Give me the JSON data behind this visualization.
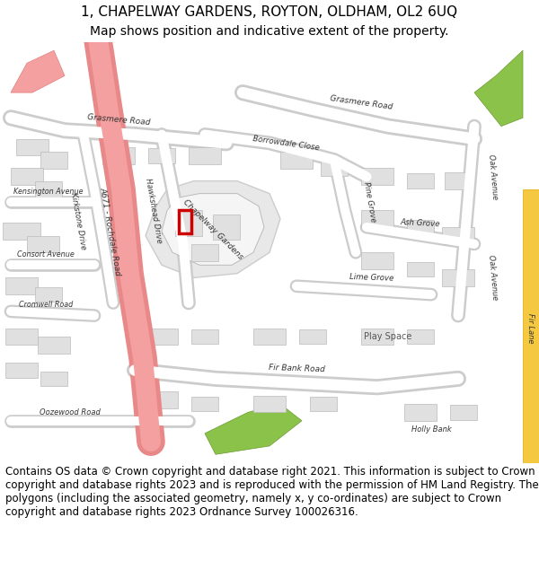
{
  "title_line1": "1, CHAPELWAY GARDENS, ROYTON, OLDHAM, OL2 6UQ",
  "title_line2": "Map shows position and indicative extent of the property.",
  "title_fontsize": 11,
  "subtitle_fontsize": 10,
  "footer_text": "Contains OS data © Crown copyright and database right 2021. This information is subject to Crown copyright and database rights 2023 and is reproduced with the permission of HM Land Registry. The polygons (including the associated geometry, namely x, y co-ordinates) are subject to Crown copyright and database rights 2023 Ordnance Survey 100026316.",
  "footer_fontsize": 8.5,
  "header_bg": "#ffffff",
  "footer_bg": "#ffffff",
  "map_bg": "#f0f0f0",
  "border_color": "#cccccc",
  "fig_width": 6.0,
  "fig_height": 6.25,
  "dpi": 100,
  "road_color": "#ffffff",
  "road_stroke": "#cccccc",
  "highlight_road_color": "#f5a0a0",
  "building_color": "#e0e0e0",
  "building_stroke": "#bbbbbb",
  "plot_color_stroke": "#cc0000",
  "plot_lw": 2.5
}
